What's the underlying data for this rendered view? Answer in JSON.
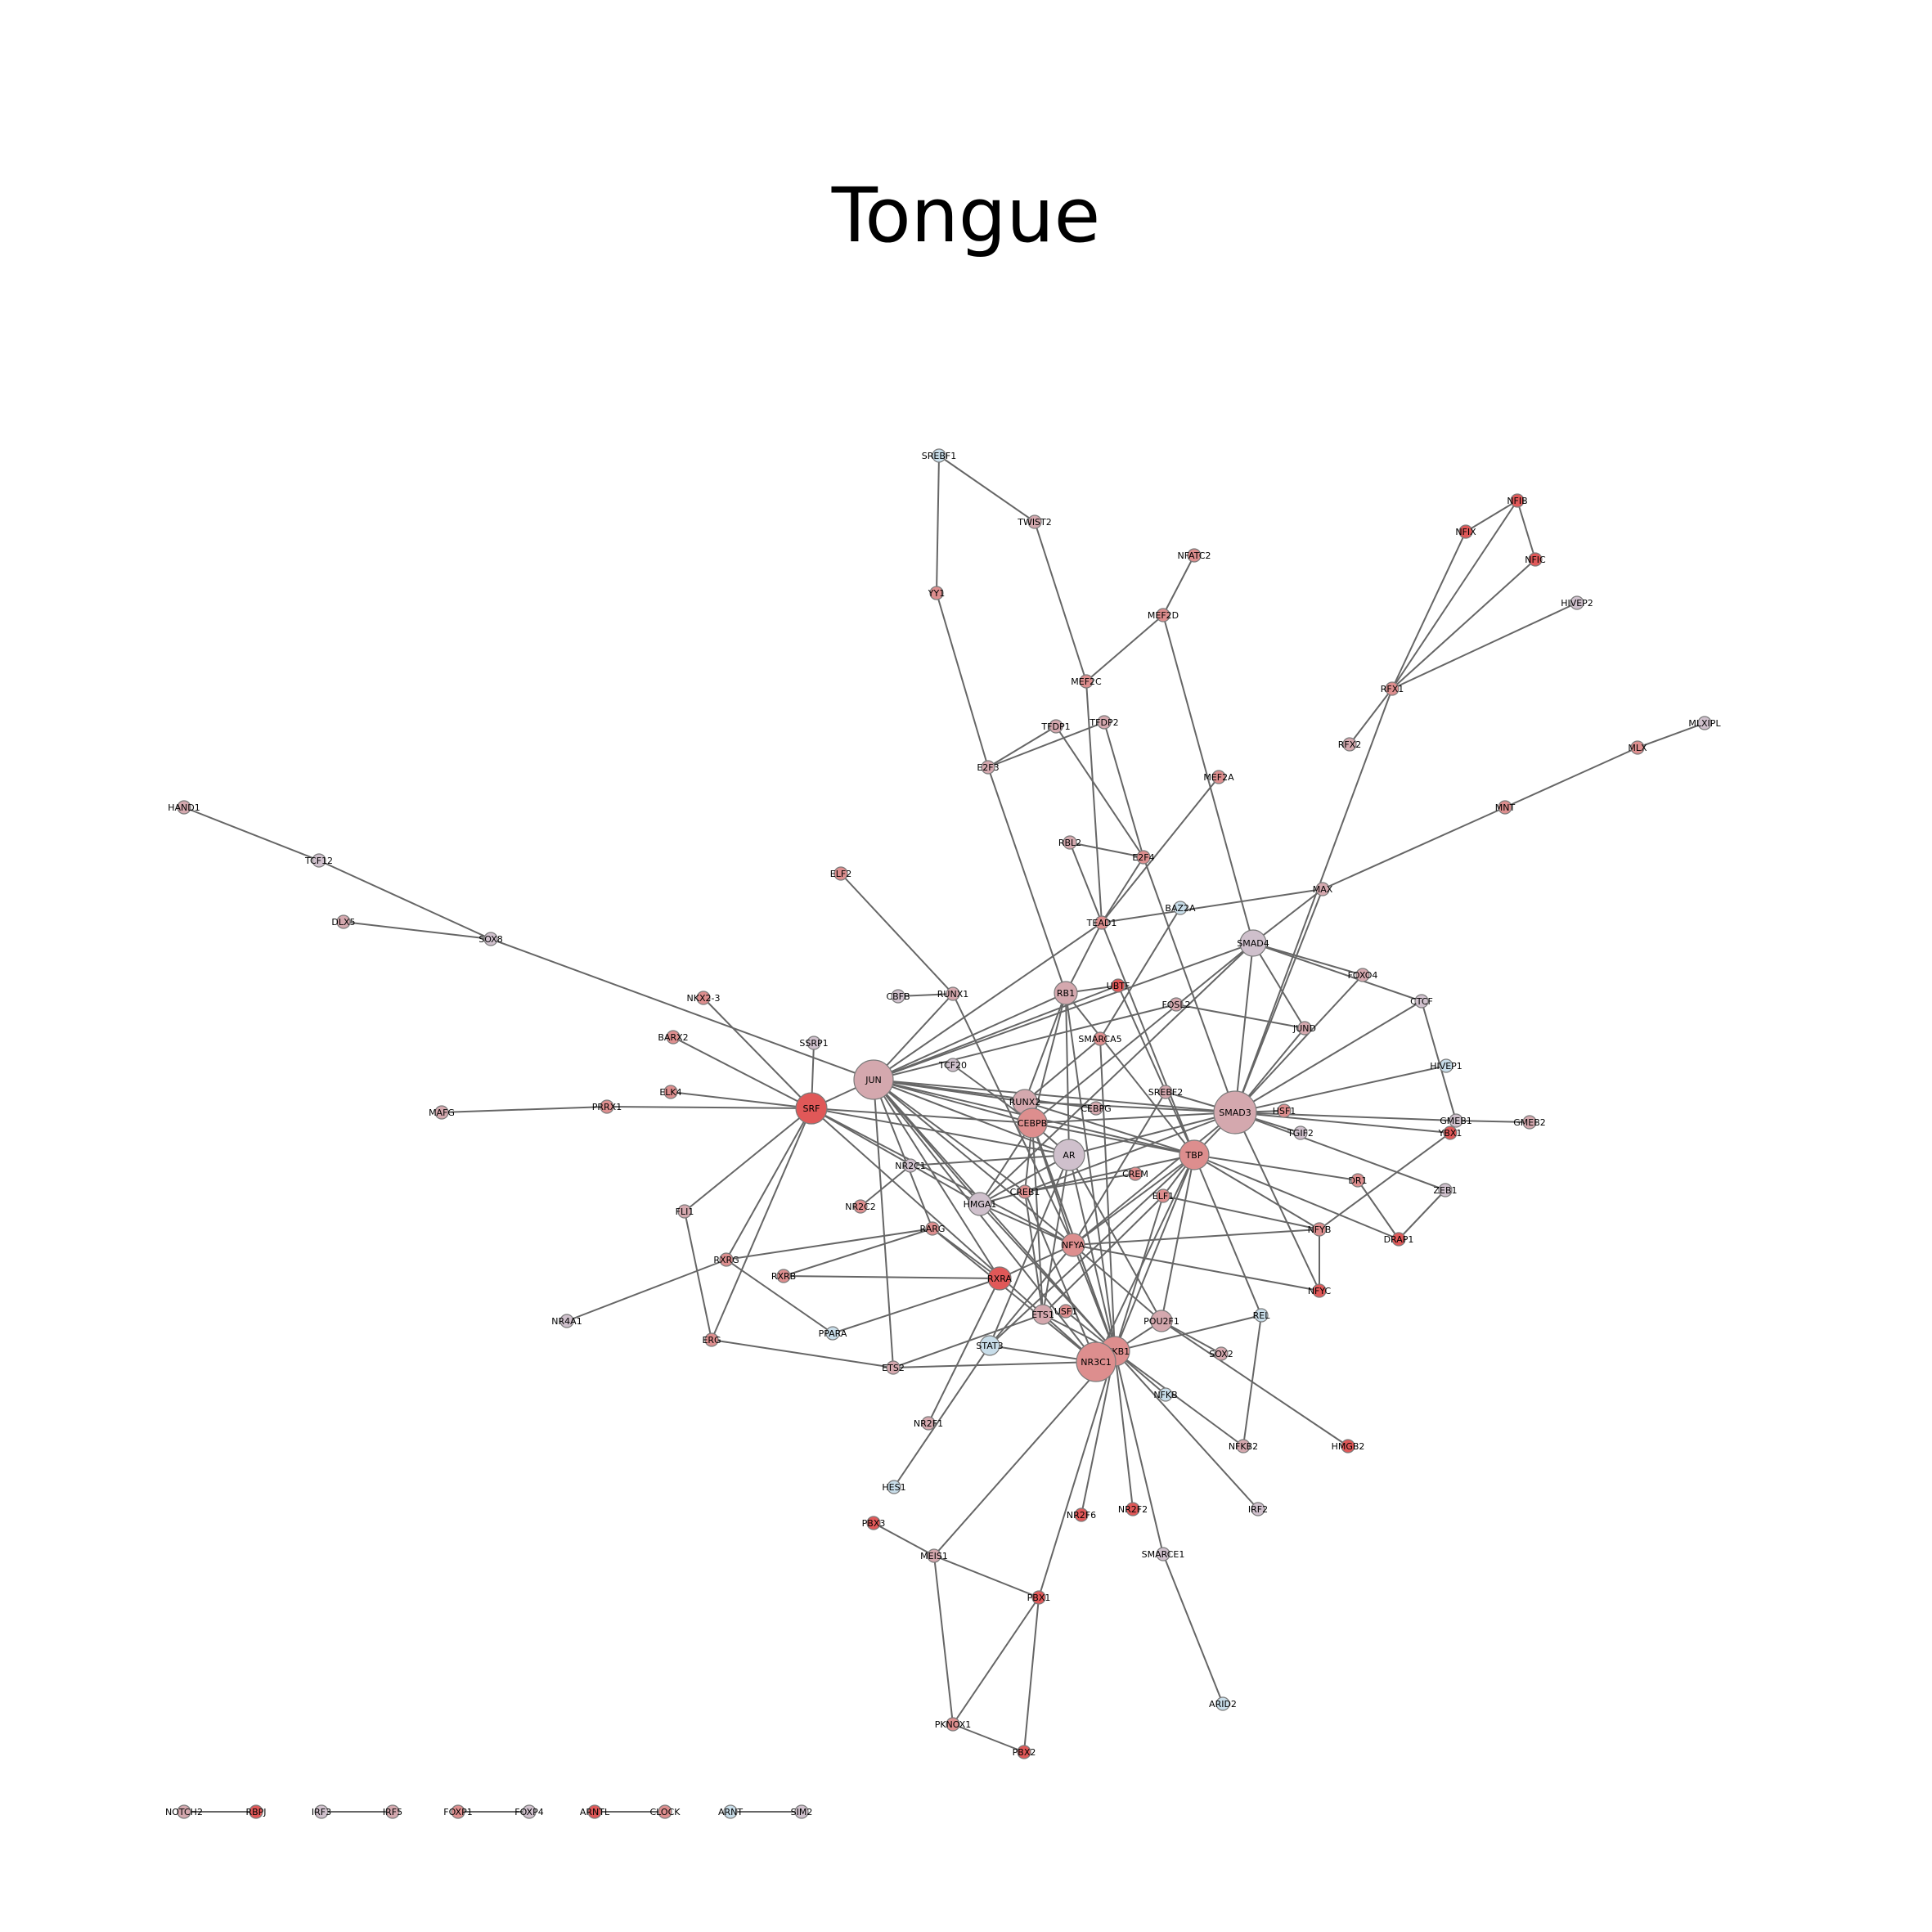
{
  "title": "Tongue",
  "colors": {
    "edge": "#666666",
    "node_stroke": "#7a7a7a",
    "red": "#e05858",
    "rose": "#dd8e8e",
    "pink": "#d4a8ae",
    "lilac": "#cfc0cc",
    "blue": "#c8dde9"
  },
  "nodes": [
    {
      "id": "SREBF1",
      "c": "blue"
    },
    {
      "id": "TWIST2",
      "c": "pink"
    },
    {
      "id": "YY1",
      "c": "rose"
    },
    {
      "id": "NFIB",
      "c": "red"
    },
    {
      "id": "NFIX",
      "c": "red"
    },
    {
      "id": "NFIC",
      "c": "red"
    },
    {
      "id": "HIVEP2",
      "c": "lilac"
    },
    {
      "id": "NFATC2",
      "c": "rose"
    },
    {
      "id": "MEF2D",
      "c": "rose"
    },
    {
      "id": "MEF2C",
      "c": "rose"
    },
    {
      "id": "RFX1",
      "c": "rose"
    },
    {
      "id": "TFDP1",
      "c": "pink"
    },
    {
      "id": "TFDP2",
      "c": "pink"
    },
    {
      "id": "E2F3",
      "c": "pink"
    },
    {
      "id": "RFX2",
      "c": "pink"
    },
    {
      "id": "MLXIPL",
      "c": "lilac"
    },
    {
      "id": "MLX",
      "c": "rose"
    },
    {
      "id": "MEF2A",
      "c": "rose"
    },
    {
      "id": "MNT",
      "c": "rose"
    },
    {
      "id": "HAND1",
      "c": "pink"
    },
    {
      "id": "RBL2",
      "c": "pink"
    },
    {
      "id": "E2F4",
      "c": "rose"
    },
    {
      "id": "ELF2",
      "c": "rose"
    },
    {
      "id": "TCF12",
      "c": "lilac"
    },
    {
      "id": "MAX",
      "c": "pink"
    },
    {
      "id": "BAZ2A",
      "c": "blue"
    },
    {
      "id": "TEAD1",
      "c": "rose"
    },
    {
      "id": "DLX5",
      "c": "pink"
    },
    {
      "id": "SOX8",
      "c": "lilac"
    },
    {
      "id": "SMAD4",
      "c": "lilac"
    },
    {
      "id": "FOXO4",
      "c": "pink"
    },
    {
      "id": "RB1",
      "c": "pink"
    },
    {
      "id": "UBTF",
      "c": "red"
    },
    {
      "id": "NKX2-3",
      "c": "rose"
    },
    {
      "id": "CBFB",
      "c": "lilac"
    },
    {
      "id": "RUNX1",
      "c": "pink"
    },
    {
      "id": "CTCF",
      "c": "lilac"
    },
    {
      "id": "FOSL2",
      "c": "pink"
    },
    {
      "id": "JUND",
      "c": "pink"
    },
    {
      "id": "BARX2",
      "c": "rose"
    },
    {
      "id": "SMARCA5",
      "c": "rose"
    },
    {
      "id": "SSRP1",
      "c": "lilac"
    },
    {
      "id": "HIVEP1",
      "c": "blue"
    },
    {
      "id": "TCF20",
      "c": "lilac"
    },
    {
      "id": "JUN",
      "c": "pink"
    },
    {
      "id": "ELK4",
      "c": "rose"
    },
    {
      "id": "SREBF2",
      "c": "pink"
    },
    {
      "id": "RUNX2",
      "c": "pink"
    },
    {
      "id": "MAFG",
      "c": "pink"
    },
    {
      "id": "PRRX1",
      "c": "rose"
    },
    {
      "id": "SRF",
      "c": "red"
    },
    {
      "id": "CEBPG",
      "c": "pink"
    },
    {
      "id": "SMAD3",
      "c": "pink"
    },
    {
      "id": "HSF1",
      "c": "rose"
    },
    {
      "id": "GMEB1",
      "c": "lilac"
    },
    {
      "id": "YBX1",
      "c": "red"
    },
    {
      "id": "GMEB2",
      "c": "pink"
    },
    {
      "id": "CEBPB",
      "c": "rose"
    },
    {
      "id": "TGIF2",
      "c": "lilac"
    },
    {
      "id": "AR",
      "c": "lilac"
    },
    {
      "id": "TBP",
      "c": "rose"
    },
    {
      "id": "NR2C1",
      "c": "lilac"
    },
    {
      "id": "CREM",
      "c": "rose"
    },
    {
      "id": "DR1",
      "c": "rose"
    },
    {
      "id": "ZEB1",
      "c": "lilac"
    },
    {
      "id": "CREB1",
      "c": "rose"
    },
    {
      "id": "FLI1",
      "c": "pink"
    },
    {
      "id": "NR2C2",
      "c": "rose"
    },
    {
      "id": "HMGA1",
      "c": "lilac"
    },
    {
      "id": "ELF1",
      "c": "rose"
    },
    {
      "id": "RARG",
      "c": "rose"
    },
    {
      "id": "NFYB",
      "c": "rose"
    },
    {
      "id": "DRAP1",
      "c": "red"
    },
    {
      "id": "RXRG",
      "c": "rose"
    },
    {
      "id": "RXRB",
      "c": "rose"
    },
    {
      "id": "NFYA",
      "c": "rose"
    },
    {
      "id": "RXRA",
      "c": "red"
    },
    {
      "id": "NFYC",
      "c": "red"
    },
    {
      "id": "NR4A1",
      "c": "lilac"
    },
    {
      "id": "ETS1",
      "c": "pink"
    },
    {
      "id": "USF1",
      "c": "rose"
    },
    {
      "id": "POU2F1",
      "c": "pink"
    },
    {
      "id": "REL",
      "c": "blue"
    },
    {
      "id": "PPARA",
      "c": "blue"
    },
    {
      "id": "ERG",
      "c": "rose"
    },
    {
      "id": "STAT3",
      "c": "blue"
    },
    {
      "id": "NFKB1",
      "c": "rose"
    },
    {
      "id": "NR3C1",
      "c": "rose"
    },
    {
      "id": "SOX2",
      "c": "pink"
    },
    {
      "id": "ETS2",
      "c": "pink"
    },
    {
      "id": "NFKB",
      "c": "blue"
    },
    {
      "id": "NR2F1",
      "c": "pink"
    },
    {
      "id": "NFKB2",
      "c": "pink"
    },
    {
      "id": "HMGB2",
      "c": "red"
    },
    {
      "id": "HES1",
      "c": "blue"
    },
    {
      "id": "NR2F6",
      "c": "red"
    },
    {
      "id": "NR2F2",
      "c": "red"
    },
    {
      "id": "IRF2",
      "c": "lilac"
    },
    {
      "id": "PBX3",
      "c": "red"
    },
    {
      "id": "MEIS1",
      "c": "pink"
    },
    {
      "id": "SMARCE1",
      "c": "lilac"
    },
    {
      "id": "PBX1",
      "c": "red"
    },
    {
      "id": "ARID2",
      "c": "blue"
    },
    {
      "id": "PKNOX1",
      "c": "rose"
    },
    {
      "id": "PBX2",
      "c": "red"
    },
    {
      "id": "NOTCH2",
      "c": "pink"
    },
    {
      "id": "RBPJ",
      "c": "red"
    },
    {
      "id": "IRF3",
      "c": "lilac"
    },
    {
      "id": "IRF5",
      "c": "pink"
    },
    {
      "id": "FOXP1",
      "c": "rose"
    },
    {
      "id": "FOXP4",
      "c": "lilac"
    },
    {
      "id": "ARNTL",
      "c": "red"
    },
    {
      "id": "CLOCK",
      "c": "rose"
    },
    {
      "id": "ARNT",
      "c": "blue"
    },
    {
      "id": "SIM2",
      "c": "lilac"
    }
  ],
  "labels": {
    "SREBF1": "SREBF1",
    "TWIST2": "TWIST2",
    "YY1": "YY1",
    "NFIB": "NFIB",
    "NFIX": "NFIX",
    "NFIC": "NFIC",
    "HIVEP2": "HIVEP2",
    "NFATC2": "NFATC2",
    "MEF2D": "MEF2D",
    "MEF2C": "MEF2C",
    "RFX1": "RFX1",
    "TFDP1": "TFDP1",
    "TFDP2": "TFDP2",
    "E2F3": "E2F3",
    "RFX2": "RFX2",
    "MLXIPL": "MLXIPL",
    "MLX": "MLX",
    "MEF2A": "MEF2A",
    "MNT": "MNT",
    "HAND1": "HAND1",
    "RBL2": "RBL2",
    "E2F4": "E2F4",
    "ELF2": "ELF2",
    "TCF12": "TCF12",
    "MAX": "MAX",
    "BAZ2A": "BAZ2A",
    "TEAD1": "TEAD1",
    "DLX5": "DLX5",
    "SOX8": "SOX8",
    "SMAD4": "SMAD4",
    "FOXO4": "FOXO4",
    "RB1": "RB1",
    "UBTF": "UBTF",
    "NKX2-3": "NKX2-3",
    "CBFB": "CBFB",
    "RUNX1": "RUNX1",
    "CTCF": "CTCF",
    "FOSL2": "FOSL2",
    "JUND": "JUND",
    "BARX2": "BARX2",
    "SMARCA5": "SMARCA5",
    "SSRP1": "SSRP1",
    "HIVEP1": "HIVEP1",
    "TCF20": "TCF20",
    "JUN": "JUN",
    "ELK4": "ELK4",
    "SREBF2": "SREBF2",
    "RUNX2": "RUNX2",
    "MAFG": "MAFG",
    "PRRX1": "PRRX1",
    "SRF": "SRF",
    "CEBPG": "CEBPG",
    "SMAD3": "SMAD3",
    "HSF1": "HSF1",
    "GMEB1": "GMEB1",
    "YBX1": "YBX1",
    "GMEB2": "GMEB2",
    "CEBPB": "CEBPB",
    "TGIF2": "TGIF2",
    "AR": "AR",
    "TBP": "TBP",
    "NR2C1": "NR2C1",
    "CREM": "CREM",
    "DR1": "DR1",
    "ZEB1": "ZEB1",
    "CREB1": "CREB1",
    "FLI1": "FLI1",
    "NR2C2": "NR2C2",
    "HMGA1": "HMGA1",
    "ELF1": "ELF1",
    "RARG": "RARG",
    "NFYB": "NFYB",
    "DRAP1": "DRAP1",
    "RXRG": "RXRG",
    "RXRB": "RXRB",
    "NFYA": "NFYA",
    "RXRA": "RXRA",
    "NFYC": "NFYC",
    "NR4A1": "NR4A1",
    "ETS1": "ETS1",
    "USF1": "USF1",
    "POU2F1": "POU2F1",
    "REL": "REL",
    "PPARA": "PPARA",
    "ERG": "ERG",
    "STAT3": "STAT3",
    "NFKB1": "NFKB1",
    "NR3C1": "NR3C1",
    "SOX2": "SOX2",
    "ETS2": "ETS2",
    "NFKB": "NFKB",
    "NR2F1": "NR2F1",
    "NFKB2": "NFKB2",
    "HMGB2": "HMGB2",
    "HES1": "HES1",
    "NR2F6": "NR2F6",
    "NR2F2": "NR2F2",
    "IRF2": "IRF2",
    "PBX3": "PBX3",
    "MEIS1": "MEIS1",
    "SMARCE1": "SMARCE1",
    "PBX1": "PBX1",
    "ARID2": "ARID2",
    "PKNOX1": "PKNOX1",
    "PBX2": "PBX2",
    "NOTCH2": "NOTCH2",
    "RBPJ": "RBPJ",
    "IRF3": "IRF3",
    "IRF5": "IRF5",
    "FOXP1": "FOXP1",
    "FOXP4": "FOXP4",
    "ARNTL": "ARNTL",
    "CLOCK": "CLOCK",
    "ARNT": "ARNT",
    "SIM2": "SIM2"
  },
  "edges": [
    [
      "SREBF1",
      "YY1"
    ],
    [
      "SREBF1",
      "TWIST2"
    ],
    [
      "TWIST2",
      "MEF2C"
    ],
    [
      "YY1",
      "E2F3"
    ],
    [
      "E2F3",
      "RB1"
    ],
    [
      "E2F3",
      "TFDP1"
    ],
    [
      "E2F3",
      "TFDP2"
    ],
    [
      "TFDP1",
      "E2F4"
    ],
    [
      "TFDP2",
      "E2F4"
    ],
    [
      "MEF2C",
      "MEF2D"
    ],
    [
      "MEF2D",
      "NFATC2"
    ],
    [
      "MEF2D",
      "SMAD4"
    ],
    [
      "MEF2C",
      "TEAD1"
    ],
    [
      "MEF2A",
      "TEAD1"
    ],
    [
      "NFIB",
      "NFIX"
    ],
    [
      "NFIB",
      "NFIC"
    ],
    [
      "NFIB",
      "RFX1"
    ],
    [
      "NFIX",
      "RFX1"
    ],
    [
      "NFIC",
      "RFX1"
    ],
    [
      "HIVEP2",
      "RFX1"
    ],
    [
      "RFX1",
      "RFX2"
    ],
    [
      "RFX1",
      "SMAD3"
    ],
    [
      "MLXIPL",
      "MLX"
    ],
    [
      "MLX",
      "MNT"
    ],
    [
      "MNT",
      "MAX"
    ],
    [
      "MAX",
      "TEAD1"
    ],
    [
      "MAX",
      "SMAD4"
    ],
    [
      "MAX",
      "SMAD3"
    ],
    [
      "RBL2",
      "E2F4"
    ],
    [
      "RBL2",
      "TEAD1"
    ],
    [
      "E2F4",
      "TEAD1"
    ],
    [
      "E2F4",
      "SMAD3"
    ],
    [
      "TEAD1",
      "RB1"
    ],
    [
      "TEAD1",
      "JUN"
    ],
    [
      "TEAD1",
      "TBP"
    ],
    [
      "HAND1",
      "TCF12"
    ],
    [
      "TCF12",
      "SOX8"
    ],
    [
      "DLX5",
      "SOX8"
    ],
    [
      "SOX8",
      "JUN"
    ],
    [
      "ELF2",
      "RUNX1"
    ],
    [
      "CBFB",
      "RUNX1"
    ],
    [
      "RUNX1",
      "JUN"
    ],
    [
      "RUNX1",
      "NFYA"
    ],
    [
      "SMAD4",
      "SMAD3"
    ],
    [
      "SMAD4",
      "JUN"
    ],
    [
      "SMAD4",
      "FOXO4"
    ],
    [
      "SMAD4",
      "CTCF"
    ],
    [
      "SMAD4",
      "CEBPB"
    ],
    [
      "SMAD4",
      "JUND"
    ],
    [
      "SMAD4",
      "HMGA1"
    ],
    [
      "FOXO4",
      "SMAD3"
    ],
    [
      "CTCF",
      "SMAD3"
    ],
    [
      "CTCF",
      "GMEB1"
    ],
    [
      "HIVEP1",
      "SMAD3"
    ],
    [
      "JUND",
      "SMAD3"
    ],
    [
      "FOSL2",
      "JUND"
    ],
    [
      "FOSL2",
      "JUN"
    ],
    [
      "BAZ2A",
      "SMARCA5"
    ],
    [
      "RB1",
      "JUN"
    ],
    [
      "RB1",
      "CEBPB"
    ],
    [
      "RB1",
      "AR"
    ],
    [
      "RB1",
      "RUNX2"
    ],
    [
      "RB1",
      "UBTF"
    ],
    [
      "RB1",
      "TBP"
    ],
    [
      "RB1",
      "NFKB1"
    ],
    [
      "UBTF",
      "JUN"
    ],
    [
      "UBTF",
      "TBP"
    ],
    [
      "SMARCA5",
      "NFKB1"
    ],
    [
      "SMARCA5",
      "RUNX2"
    ],
    [
      "JUN",
      "SRF"
    ],
    [
      "JUN",
      "RUNX2"
    ],
    [
      "JUN",
      "CEBPB"
    ],
    [
      "JUN",
      "AR"
    ],
    [
      "JUN",
      "SMAD3"
    ],
    [
      "JUN",
      "CREB1"
    ],
    [
      "JUN",
      "NFYA"
    ],
    [
      "JUN",
      "ETS2"
    ],
    [
      "JUN",
      "HMGA1"
    ],
    [
      "JUN",
      "NR3C1"
    ],
    [
      "JUN",
      "RXRA"
    ],
    [
      "JUN",
      "NFKB1"
    ],
    [
      "JUN",
      "TBP"
    ],
    [
      "JUN",
      "CEBPG"
    ],
    [
      "JUN",
      "RARG"
    ],
    [
      "TCF20",
      "CEBPB"
    ],
    [
      "SRF",
      "NKX2-3"
    ],
    [
      "SRF",
      "BARX2"
    ],
    [
      "SRF",
      "SSRP1"
    ],
    [
      "SRF",
      "ELK4"
    ],
    [
      "SRF",
      "PRRX1"
    ],
    [
      "SRF",
      "FLI1"
    ],
    [
      "SRF",
      "RXRG"
    ],
    [
      "SRF",
      "ERG"
    ],
    [
      "SRF",
      "CEBPB"
    ],
    [
      "SRF",
      "NFYA"
    ],
    [
      "SRF",
      "HMGA1"
    ],
    [
      "SRF",
      "AR"
    ],
    [
      "SRF",
      "NR3C1"
    ],
    [
      "MAFG",
      "PRRX1"
    ],
    [
      "FLI1",
      "ERG"
    ],
    [
      "RXRG",
      "NR4A1"
    ],
    [
      "RXRG",
      "PPARA"
    ],
    [
      "RXRG",
      "RARG"
    ],
    [
      "ERG",
      "ETS2"
    ],
    [
      "RUNX2",
      "CEBPB"
    ],
    [
      "RUNX2",
      "SMAD3"
    ],
    [
      "RUNX2",
      "TBP"
    ],
    [
      "RUNX2",
      "NFKB1"
    ],
    [
      "CEBPB",
      "AR"
    ],
    [
      "CEBPB",
      "SMAD3"
    ],
    [
      "CEBPB",
      "CREB1"
    ],
    [
      "CEBPB",
      "NFYA"
    ],
    [
      "CEBPB",
      "TBP"
    ],
    [
      "CEBPB",
      "ETS1"
    ],
    [
      "CEBPB",
      "HMGA1"
    ],
    [
      "CEBPB",
      "NFKB1"
    ],
    [
      "AR",
      "SMAD3"
    ],
    [
      "AR",
      "NFKB1"
    ],
    [
      "AR",
      "NR2C1"
    ],
    [
      "AR",
      "HMGA1"
    ],
    [
      "AR",
      "STAT3"
    ],
    [
      "AR",
      "ETS1"
    ],
    [
      "AR",
      "POU2F1"
    ],
    [
      "SMAD3",
      "HSF1"
    ],
    [
      "SMAD3",
      "GMEB1"
    ],
    [
      "SMAD3",
      "YBX1"
    ],
    [
      "SMAD3",
      "TGIF2"
    ],
    [
      "SMAD3",
      "ZEB1"
    ],
    [
      "SMAD3",
      "NFYC"
    ],
    [
      "SMAD3",
      "TBP"
    ],
    [
      "SMAD3",
      "CREB1"
    ],
    [
      "SMAD3",
      "NFYA"
    ],
    [
      "SREBF2",
      "NFYA"
    ],
    [
      "SREBF2",
      "SMAD3"
    ],
    [
      "GMEB1",
      "GMEB2"
    ],
    [
      "GMEB1",
      "YBX1"
    ],
    [
      "TBP",
      "DR1"
    ],
    [
      "TBP",
      "DRAP1"
    ],
    [
      "TBP",
      "NFYB"
    ],
    [
      "TBP",
      "CREB1"
    ],
    [
      "TBP",
      "NFYA"
    ],
    [
      "TBP",
      "POU2F1"
    ],
    [
      "TBP",
      "NFKB1"
    ],
    [
      "TBP",
      "NR3C1"
    ],
    [
      "TBP",
      "REL"
    ],
    [
      "TBP",
      "ELF1"
    ],
    [
      "TBP",
      "STAT3"
    ],
    [
      "DR1",
      "DRAP1"
    ],
    [
      "ZEB1",
      "DRAP1"
    ],
    [
      "YBX1",
      "NFYB"
    ],
    [
      "NFYB",
      "NFYC"
    ],
    [
      "NFYB",
      "NFYA"
    ],
    [
      "NFYB",
      "ELF1"
    ],
    [
      "CREM",
      "CREB1"
    ],
    [
      "CREB1",
      "NR3C1"
    ],
    [
      "CREB1",
      "ETS1"
    ],
    [
      "CREB1",
      "HMGA1"
    ],
    [
      "ELF1",
      "NFKB1"
    ],
    [
      "ELF1",
      "ETS1"
    ],
    [
      "NR2C1",
      "NR2C2"
    ],
    [
      "HMGA1",
      "NFYA"
    ],
    [
      "HMGA1",
      "NFKB1"
    ],
    [
      "RARG",
      "RXRB"
    ],
    [
      "RARG",
      "RXRA"
    ],
    [
      "RARG",
      "NR3C1"
    ],
    [
      "NFYA",
      "NFYC"
    ],
    [
      "NFYA",
      "RXRA"
    ],
    [
      "NFYA",
      "NFKB1"
    ],
    [
      "NFYA",
      "POU2F1"
    ],
    [
      "NFYA",
      "STAT3"
    ],
    [
      "RXRA",
      "PPARA"
    ],
    [
      "RXRA",
      "RXRB"
    ],
    [
      "RXRA",
      "NR2F1"
    ],
    [
      "ETS1",
      "NFKB1"
    ],
    [
      "ETS1",
      "ETS2"
    ],
    [
      "USF1",
      "NFKB1"
    ],
    [
      "POU2F1",
      "NFKB1"
    ],
    [
      "POU2F1",
      "SOX2"
    ],
    [
      "POU2F1",
      "HMGB2"
    ],
    [
      "REL",
      "NFKB1"
    ],
    [
      "REL",
      "NFKB2"
    ],
    [
      "STAT3",
      "NR3C1"
    ],
    [
      "STAT3",
      "HES1"
    ],
    [
      "NR3C1",
      "ETS2"
    ],
    [
      "NFKB1",
      "NFKB"
    ],
    [
      "NFKB1",
      "NFKB2"
    ],
    [
      "NFKB1",
      "IRF2"
    ],
    [
      "NFKB1",
      "NR2F6"
    ],
    [
      "NFKB1",
      "NR2F2"
    ],
    [
      "NFKB1",
      "SMARCE1"
    ],
    [
      "NFKB1",
      "PBX1"
    ],
    [
      "NFKB1",
      "MEIS1"
    ],
    [
      "SMARCE1",
      "ARID2"
    ],
    [
      "PBX3",
      "MEIS1"
    ],
    [
      "MEIS1",
      "PBX1"
    ],
    [
      "MEIS1",
      "PKNOX1"
    ],
    [
      "PKNOX1",
      "PBX1"
    ],
    [
      "PKNOX1",
      "PBX2"
    ],
    [
      "PBX1",
      "PBX2"
    ],
    [
      "NOTCH2",
      "RBPJ"
    ],
    [
      "IRF3",
      "IRF5"
    ],
    [
      "FOXP1",
      "FOXP4"
    ],
    [
      "ARNTL",
      "CLOCK"
    ],
    [
      "ARNT",
      "SIM2"
    ]
  ]
}
